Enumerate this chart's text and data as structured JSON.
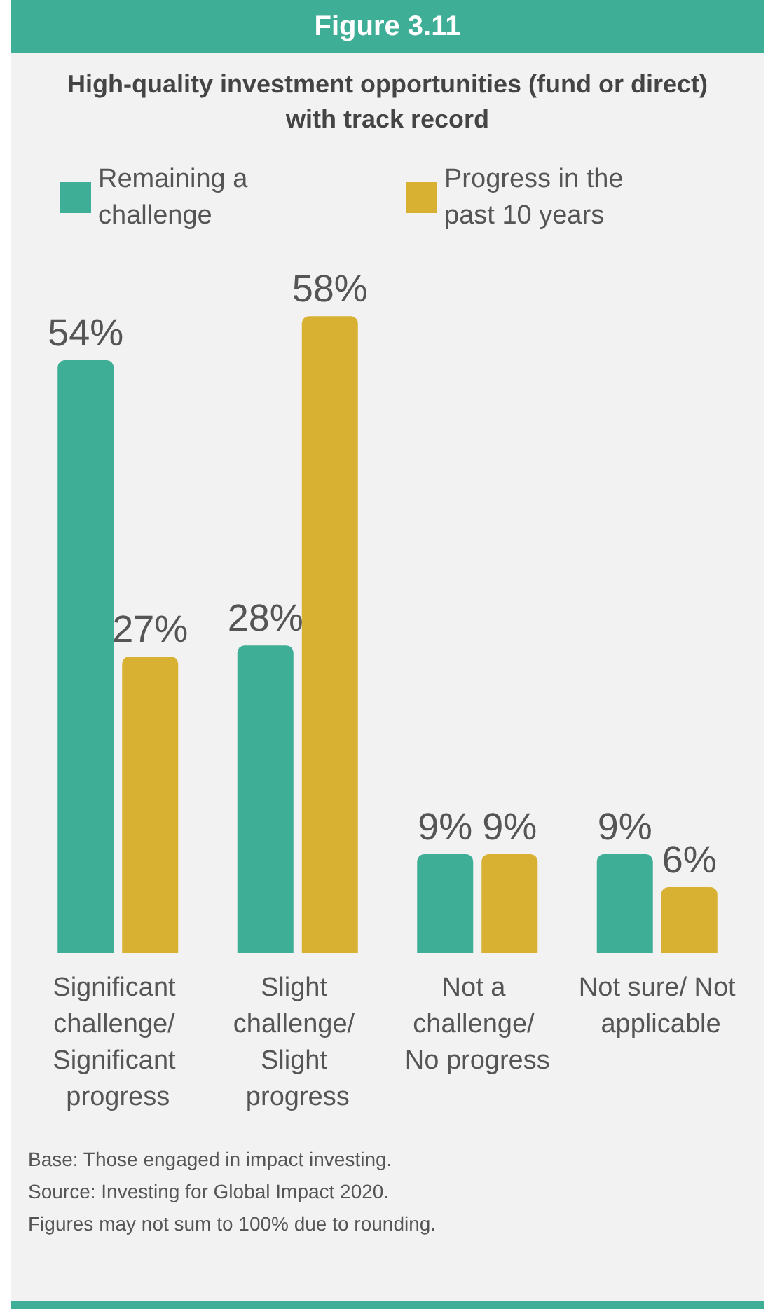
{
  "chart_data": {
    "type": "bar",
    "title": "Figure 3.11",
    "subtitle": "High-quality investment opportunities (fund or direct) with track record",
    "categories": [
      "Significant challenge/ Significant progress",
      "Slight challenge/ Slight progress",
      "Not a challenge/ No progress",
      "Not sure/ Not applicable"
    ],
    "series": [
      {
        "name": "Remaining a challenge",
        "color": "#3fae96",
        "values": [
          54,
          28,
          9,
          9
        ],
        "value_labels": [
          "54%",
          "28%",
          "9%",
          "9%"
        ]
      },
      {
        "name": "Progress in the past 10 years",
        "color": "#d9b132",
        "values": [
          27,
          58,
          9,
          6
        ],
        "value_labels": [
          "27%",
          "58%",
          "9%",
          "6%"
        ]
      }
    ],
    "legend": "top",
    "annotations": [
      "Base: Those engaged in impact investing.",
      "Source: Investing for Global Impact 2020.",
      "Figures may not sum to 100% due to rounding."
    ]
  }
}
